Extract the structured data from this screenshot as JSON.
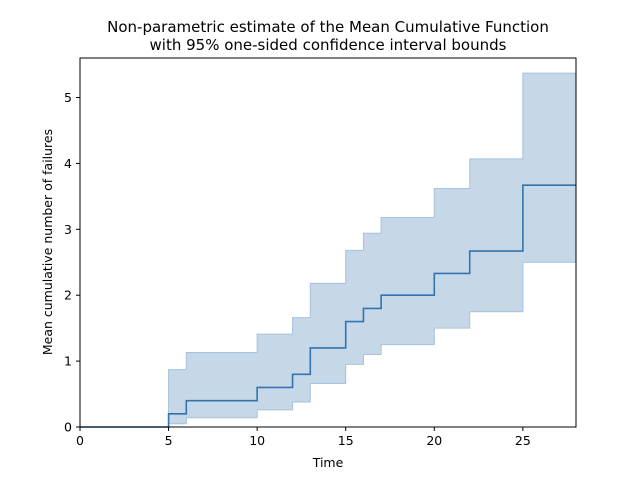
{
  "chart_data": {
    "type": "line",
    "title_line1": "Non-parametric estimate of the Mean Cumulative Function",
    "title_line2": "with 95% one-sided confidence interval bounds",
    "xlabel": "Time",
    "ylabel": "Mean cumulative number of failures",
    "xlim": [
      0,
      28
    ],
    "ylim": [
      0,
      5.6
    ],
    "xticks": [
      0,
      5,
      10,
      15,
      20,
      25
    ],
    "yticks": [
      0,
      1,
      2,
      3,
      4,
      5
    ],
    "grid": false,
    "legend": "none",
    "step": true,
    "series": [
      {
        "x": [
          0,
          5,
          6,
          10,
          12,
          13,
          15,
          16,
          17,
          20,
          22,
          25,
          28
        ],
        "mcf": [
          0,
          0.2,
          0.4,
          0.6,
          0.8,
          1.2,
          1.6,
          1.8,
          2.0,
          2.33,
          2.67,
          3.67,
          3.67
        ],
        "upper": [
          0,
          0.87,
          1.13,
          1.41,
          1.66,
          2.18,
          2.68,
          2.94,
          3.18,
          3.62,
          4.07,
          5.37,
          5.37
        ],
        "lower": [
          0,
          0.05,
          0.14,
          0.26,
          0.38,
          0.66,
          0.95,
          1.1,
          1.25,
          1.5,
          1.75,
          2.5,
          2.5
        ],
        "line_color": "#3274ad",
        "band_color": "#c6d7e8",
        "band_edge_color": "#a6c2dc"
      }
    ]
  }
}
